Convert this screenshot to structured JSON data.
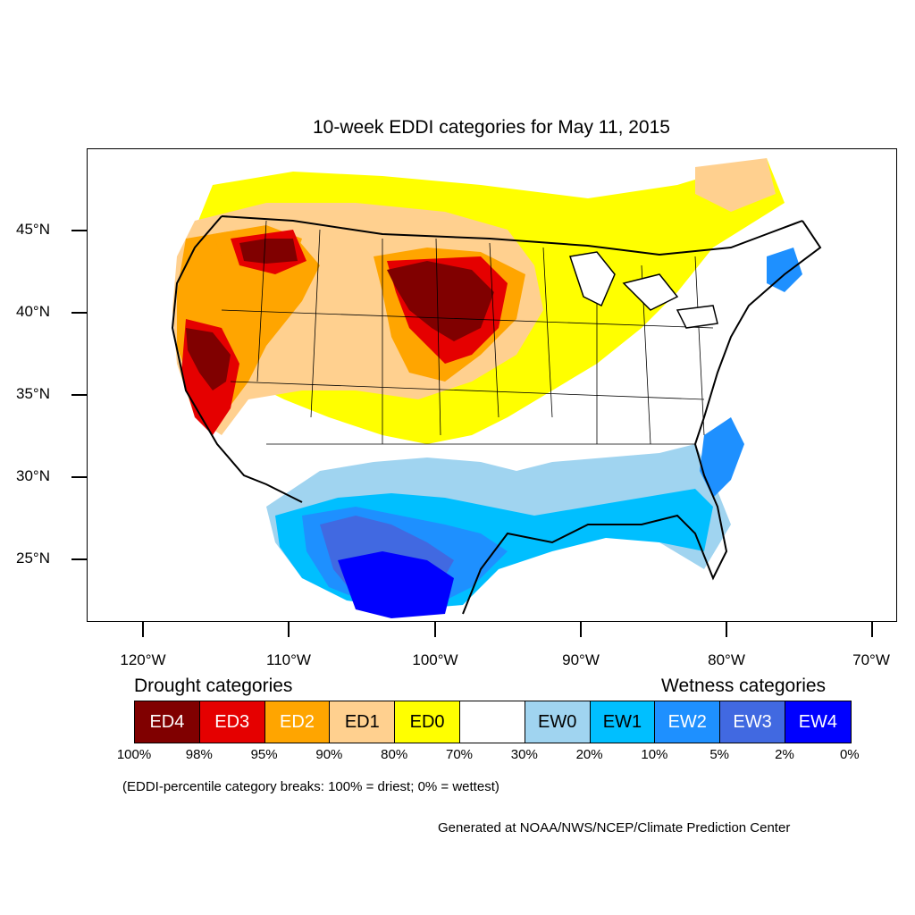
{
  "title": "10-week EDDI categories for May 11, 2015",
  "axes": {
    "y_labels": [
      "45°N",
      "40°N",
      "35°N",
      "30°N",
      "25°N"
    ],
    "x_labels": [
      "120°W",
      "110°W",
      "100°W",
      "90°W",
      "80°W",
      "70°W"
    ]
  },
  "legend": {
    "drought_heading": "Drought categories",
    "wetness_heading": "Wetness categories",
    "categories": [
      {
        "label": "ED4",
        "color": "#800000",
        "text_color": "#ffffff"
      },
      {
        "label": "ED3",
        "color": "#e50000",
        "text_color": "#ffffff"
      },
      {
        "label": "ED2",
        "color": "#ffa500",
        "text_color": "#ffffff"
      },
      {
        "label": "ED1",
        "color": "#ffd08f",
        "text_color": "#000000"
      },
      {
        "label": "ED0",
        "color": "#ffff00",
        "text_color": "#000000"
      },
      {
        "label": "",
        "color": "#ffffff",
        "text_color": "#000000"
      },
      {
        "label": "EW0",
        "color": "#a0d4f0",
        "text_color": "#000000"
      },
      {
        "label": "EW1",
        "color": "#00bfff",
        "text_color": "#000000"
      },
      {
        "label": "EW2",
        "color": "#1e90ff",
        "text_color": "#ffffff"
      },
      {
        "label": "EW3",
        "color": "#4169e1",
        "text_color": "#ffffff"
      },
      {
        "label": "EW4",
        "color": "#0000ff",
        "text_color": "#ffffff"
      }
    ],
    "breaks": [
      "100%",
      "98%",
      "95%",
      "90%",
      "80%",
      "70%",
      "30%",
      "20%",
      "10%",
      "5%",
      "2%",
      "0%"
    ]
  },
  "note": "(EDDI-percentile category breaks: 100% = driest; 0% = wettest)",
  "credit": "Generated at NOAA/NWS/NCEP/Climate Prediction Center"
}
